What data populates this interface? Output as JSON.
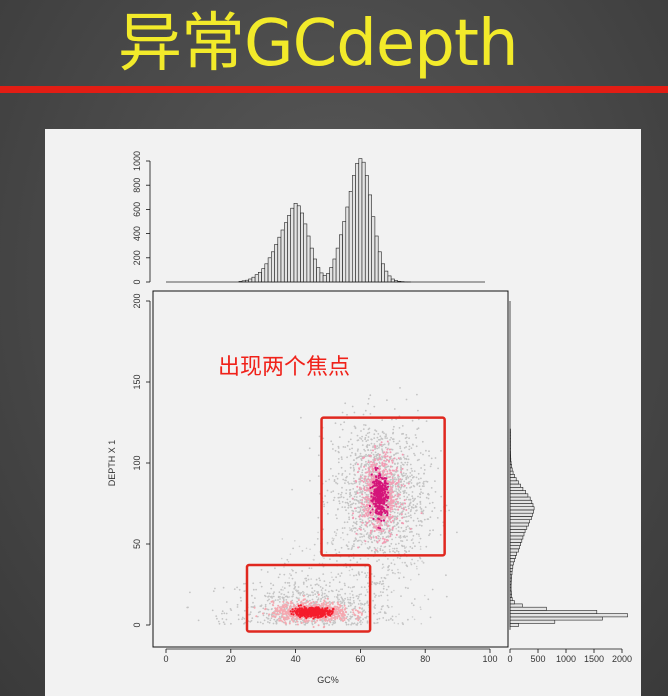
{
  "slide": {
    "title": "异常GCdepth",
    "accent_color": "#f2ea2a",
    "divider_color": "#e21d14",
    "annotation": "出现两个焦点",
    "annotation_color": "#f0221a"
  },
  "chart_data": [
    {
      "type": "scatter",
      "xlabel": "GC%",
      "ylabel": "DEPTH X 1",
      "xlim": [
        0,
        100
      ],
      "ylim": [
        0,
        200
      ],
      "xticks": [
        "0",
        "20",
        "40",
        "60",
        "80",
        "100"
      ],
      "yticks": [
        "0",
        "50",
        "100",
        "150",
        "200"
      ],
      "clusters": [
        {
          "center_gc": 45,
          "center_depth": 8,
          "spread_gc": 6,
          "spread_depth": 3
        },
        {
          "center_gc": 66,
          "center_depth": 80,
          "spread_gc": 3,
          "spread_depth": 12
        }
      ],
      "highlight_boxes": [
        {
          "gc_range": [
            25,
            63
          ],
          "depth_range": [
            -4,
            37
          ]
        },
        {
          "gc_range": [
            48,
            86
          ],
          "depth_range": [
            43,
            128
          ]
        }
      ],
      "box_color": "#e0281f"
    },
    {
      "type": "bar",
      "title": "",
      "xlabel": "",
      "ylabel": "",
      "ylim": [
        0,
        1000
      ],
      "yticks": [
        "0",
        "200",
        "400",
        "600",
        "800",
        "1000"
      ],
      "x": [
        23,
        24,
        25,
        26,
        27,
        28,
        29,
        30,
        31,
        32,
        33,
        34,
        35,
        36,
        37,
        38,
        39,
        40,
        41,
        42,
        43,
        44,
        45,
        46,
        47,
        48,
        49,
        50,
        51,
        52,
        53,
        54,
        55,
        56,
        57,
        58,
        59,
        60,
        61,
        62,
        63,
        64,
        65,
        66,
        67,
        68,
        69,
        70,
        71,
        72,
        73,
        74,
        75
      ],
      "values": [
        5,
        10,
        15,
        25,
        40,
        60,
        80,
        110,
        150,
        200,
        250,
        310,
        370,
        430,
        490,
        550,
        610,
        650,
        630,
        570,
        480,
        380,
        280,
        190,
        120,
        75,
        55,
        70,
        120,
        190,
        280,
        390,
        500,
        620,
        750,
        880,
        980,
        1020,
        990,
        880,
        720,
        540,
        380,
        250,
        150,
        90,
        50,
        25,
        12,
        6,
        3,
        2,
        1
      ]
    },
    {
      "type": "bar",
      "orientation": "horizontal",
      "title": "",
      "xlabel": "",
      "ylabel": "",
      "xlim": [
        0,
        2000
      ],
      "xticks": [
        "0",
        "500",
        "1000",
        "1500",
        "2000"
      ],
      "depth": [
        0,
        2,
        4,
        6,
        8,
        10,
        12,
        14,
        16,
        18,
        20,
        22,
        24,
        26,
        28,
        30,
        32,
        34,
        36,
        38,
        40,
        42,
        44,
        46,
        48,
        50,
        52,
        54,
        56,
        58,
        60,
        62,
        64,
        66,
        68,
        70,
        72,
        74,
        76,
        78,
        80,
        82,
        84,
        86,
        88,
        90,
        92,
        94,
        96,
        98,
        100,
        102,
        104,
        106,
        108,
        110,
        112,
        114,
        116,
        118,
        120
      ],
      "counts": [
        150,
        800,
        1650,
        2100,
        1550,
        650,
        220,
        80,
        40,
        30,
        25,
        20,
        20,
        22,
        25,
        30,
        35,
        40,
        50,
        60,
        80,
        100,
        120,
        150,
        170,
        190,
        210,
        230,
        250,
        270,
        300,
        330,
        350,
        380,
        400,
        420,
        430,
        410,
        390,
        360,
        320,
        280,
        230,
        190,
        150,
        110,
        80,
        55,
        40,
        30,
        20,
        15,
        12,
        10,
        8,
        6,
        5,
        4,
        3,
        2,
        1
      ]
    }
  ]
}
